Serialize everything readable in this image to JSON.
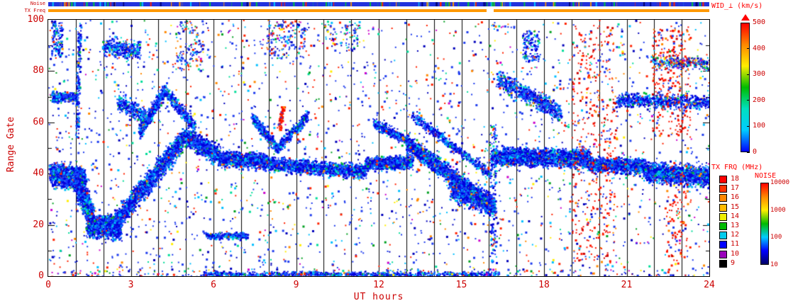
{
  "style": {
    "label_color": "#cc0000",
    "title_color": "#ff0000",
    "grid_color": "#000000",
    "frame_color": "#000000",
    "background_color": "#ffffff"
  },
  "figure": {
    "strip_labels": {
      "noise": "Noise",
      "tx_freq": "TX Freq"
    },
    "noise_strip": {
      "base_color": "#2233dd",
      "speck_count": 520
    },
    "tx_strip_segments": [
      {
        "from": 0.0,
        "to": 0.663,
        "color": "#ff9900"
      },
      {
        "from": 0.663,
        "to": 0.674,
        "color": "#ffffff"
      },
      {
        "from": 0.674,
        "to": 1.0,
        "color": "#ff9900"
      }
    ],
    "axes": {
      "xlabel": "UT hours",
      "ylabel": "Range Gate",
      "x_ticks": [
        "0",
        "3",
        "6",
        "9",
        "12",
        "15",
        "18",
        "21",
        "24"
      ],
      "y_ticks": [
        "0",
        "20",
        "40",
        "60",
        "80",
        "100"
      ]
    },
    "colorbars": {
      "wid": {
        "title": "WID_⊥ (km/s)",
        "tick_labels": [
          "0",
          "100",
          "200",
          "300",
          "400",
          "500"
        ],
        "max": 500,
        "gradient": [
          "#0000ff",
          "#00ccff",
          "#00e0c0",
          "#00bb00",
          "#ffee00",
          "#ff8800",
          "#ff0000"
        ]
      },
      "tx_frq": {
        "title": "TX FRQ (MHz)",
        "entries": [
          {
            "label": "18",
            "color": "#ff0000"
          },
          {
            "label": "17",
            "color": "#ff3300"
          },
          {
            "label": "16",
            "color": "#ff8800"
          },
          {
            "label": "15",
            "color": "#ffbb00"
          },
          {
            "label": "14",
            "color": "#eeee00"
          },
          {
            "label": "13",
            "color": "#00bb00"
          },
          {
            "label": "12",
            "color": "#00ccee"
          },
          {
            "label": "11",
            "color": "#0000ff"
          },
          {
            "label": "10",
            "color": "#9900bb"
          },
          {
            "label": "9",
            "color": "#000000"
          }
        ]
      },
      "noise": {
        "title": "NOISE",
        "tick_labels": [
          "10000",
          "1000",
          "100",
          "10"
        ],
        "log_min": 10,
        "log_max": 10000,
        "gradient": [
          "#000066",
          "#0000ff",
          "#00ccff",
          "#00bb00",
          "#ffee00",
          "#ff8800",
          "#ff0000"
        ]
      }
    }
  },
  "chart_data": {
    "type": "heatmap",
    "title": "",
    "xlabel": "UT hours",
    "ylabel": "Range Gate",
    "x_range": [
      0,
      24
    ],
    "y_range": [
      0,
      100
    ],
    "grid": {
      "vertical_line_every_hours": 1,
      "color": "#000000"
    },
    "colorbar": {
      "label": "WID_⊥ (km/s)",
      "range": [
        0,
        500
      ]
    },
    "units": {
      "x": "UT hours",
      "y": "range gate",
      "color": "perpendicular spectral width (km/s)"
    },
    "palettes": {
      "dense": [
        [
          "#0000dd",
          0.45
        ],
        [
          "#1e3cff",
          0.22
        ],
        [
          "#0077ff",
          0.12
        ],
        [
          "#00bfff",
          0.09
        ],
        [
          "#00e0d0",
          0.05
        ],
        [
          "#00b830",
          0.03
        ],
        [
          "#ff2a00",
          0.025
        ],
        [
          "#ff9900",
          0.015
        ]
      ],
      "bg": [
        [
          "#1e3cee",
          0.38
        ],
        [
          "#0000bb",
          0.14
        ],
        [
          "#00bfff",
          0.1
        ],
        [
          "#00dd99",
          0.06
        ],
        [
          "#00a020",
          0.06
        ],
        [
          "#ff2200",
          0.14
        ],
        [
          "#ff8800",
          0.05
        ],
        [
          "#ffee00",
          0.03
        ],
        [
          "#cc00cc",
          0.04
        ]
      ],
      "red": [
        [
          "#ff1500",
          0.58
        ],
        [
          "#cc0000",
          0.2
        ],
        [
          "#ff8800",
          0.12
        ],
        [
          "#1e3cee",
          0.1
        ]
      ],
      "strip": [
        [
          "#2233dd",
          0.72
        ],
        [
          "#00c040",
          0.08
        ],
        [
          "#ff2200",
          0.07
        ],
        [
          "#ff9900",
          0.05
        ],
        [
          "#00c8ff",
          0.04
        ],
        [
          "#000070",
          0.04
        ]
      ]
    },
    "background": {
      "count": 2600,
      "palette": "bg"
    },
    "features": [
      {
        "x0": 0.05,
        "y0": 40,
        "x1": 1.3,
        "y1": 38,
        "spread": 5,
        "count": 1300,
        "palette": "dense"
      },
      {
        "x0": 1.0,
        "y0": 38,
        "x1": 1.6,
        "y1": 22,
        "spread": 7,
        "count": 900,
        "palette": "dense"
      },
      {
        "x0": 1.4,
        "y0": 20,
        "x1": 2.6,
        "y1": 19,
        "spread": 5,
        "count": 1400,
        "palette": "dense"
      },
      {
        "x0": 2.4,
        "y0": 21,
        "x1": 4.9,
        "y1": 54,
        "spread": 5,
        "count": 1800,
        "palette": "dense"
      },
      {
        "x0": 3.3,
        "y0": 56,
        "x1": 4.2,
        "y1": 73,
        "spread": 3,
        "count": 450,
        "palette": "dense"
      },
      {
        "x0": 4.2,
        "y0": 73,
        "x1": 5.3,
        "y1": 58,
        "spread": 3,
        "count": 350,
        "palette": "dense"
      },
      {
        "x0": 4.9,
        "y0": 55,
        "x1": 6.2,
        "y1": 47,
        "spread": 4,
        "count": 900,
        "palette": "dense"
      },
      {
        "x0": 6.2,
        "y0": 46,
        "x1": 8.0,
        "y1": 45,
        "spread": 3.5,
        "count": 1100,
        "palette": "dense"
      },
      {
        "x0": 7.4,
        "y0": 62,
        "x1": 8.3,
        "y1": 50,
        "spread": 2.5,
        "count": 350,
        "palette": "dense"
      },
      {
        "x0": 8.3,
        "y0": 50,
        "x1": 9.4,
        "y1": 63,
        "spread": 2.5,
        "count": 320,
        "palette": "dense"
      },
      {
        "x0": 8.0,
        "y0": 44,
        "x1": 11.5,
        "y1": 41,
        "spread": 3,
        "count": 1500,
        "palette": "dense"
      },
      {
        "x0": 11.5,
        "y0": 44,
        "x1": 13.2,
        "y1": 45,
        "spread": 3,
        "count": 800,
        "palette": "dense"
      },
      {
        "x0": 11.8,
        "y0": 60,
        "x1": 13.0,
        "y1": 53,
        "spread": 2.5,
        "count": 300,
        "palette": "dense"
      },
      {
        "x0": 13.0,
        "y0": 52,
        "x1": 16.2,
        "y1": 27,
        "spread": 4,
        "count": 2000,
        "palette": "dense"
      },
      {
        "x0": 13.2,
        "y0": 63,
        "x1": 16.0,
        "y1": 40,
        "spread": 2.5,
        "count": 500,
        "palette": "dense"
      },
      {
        "x0": 14.6,
        "y0": 34,
        "x1": 16.1,
        "y1": 28,
        "spread": 5,
        "count": 900,
        "palette": "dense"
      },
      {
        "x0": 16.1,
        "y0": 47,
        "x1": 19.6,
        "y1": 46,
        "spread": 4,
        "count": 2300,
        "palette": "dense"
      },
      {
        "x0": 16.3,
        "y0": 77,
        "x1": 18.6,
        "y1": 64,
        "spread": 4,
        "count": 700,
        "palette": "dense"
      },
      {
        "x0": 19.6,
        "y0": 44,
        "x1": 21.6,
        "y1": 43,
        "spread": 3.5,
        "count": 1100,
        "palette": "dense"
      },
      {
        "x0": 21.6,
        "y0": 41,
        "x1": 24,
        "y1": 39,
        "spread": 4.5,
        "count": 1500,
        "palette": "dense"
      },
      {
        "x0": 20.6,
        "y0": 69,
        "x1": 24,
        "y1": 68,
        "spread": 3,
        "count": 650,
        "palette": "dense"
      },
      {
        "x0": 21.9,
        "y0": 84,
        "x1": 24,
        "y1": 83,
        "spread": 3,
        "count": 280,
        "palette": "bg"
      },
      {
        "x0": 0.1,
        "y0": 70,
        "x1": 1.0,
        "y1": 70,
        "spread": 2.5,
        "count": 260,
        "palette": "dense"
      },
      {
        "x0": 2.0,
        "y0": 90,
        "x1": 3.3,
        "y1": 88,
        "spread": 4,
        "count": 320,
        "palette": "dense"
      },
      {
        "x0": 2.5,
        "y0": 68,
        "x1": 3.5,
        "y1": 63,
        "spread": 4,
        "count": 300,
        "palette": "dense"
      },
      {
        "x0": 5.7,
        "y0": 16,
        "x1": 7.2,
        "y1": 16,
        "spread": 1.5,
        "count": 320,
        "palette": "dense"
      },
      {
        "x0": 5.6,
        "y0": 1,
        "x1": 16.3,
        "y1": 1,
        "spread": 1.2,
        "count": 800,
        "palette": "dense"
      },
      {
        "x0": 8.35,
        "y0": 57,
        "x1": 8.5,
        "y1": 66,
        "spread": 1.5,
        "count": 70,
        "palette": "red"
      },
      {
        "box": true,
        "x0": 19.0,
        "x1": 20.6,
        "y0": 5,
        "y1": 98,
        "count": 380,
        "palette": "red"
      },
      {
        "box": true,
        "x0": 21.9,
        "x1": 23.3,
        "y0": 55,
        "y1": 98,
        "count": 240,
        "palette": "red"
      },
      {
        "box": true,
        "x0": 0,
        "x1": 24,
        "y0": 0,
        "y1": 3,
        "count": 240,
        "palette": "bg"
      },
      {
        "x0": 1.02,
        "y0": 55,
        "x1": 1.12,
        "y1": 98,
        "spread": 1.5,
        "count": 160,
        "palette": "dense"
      },
      {
        "box": true,
        "x0": 16.02,
        "x1": 16.25,
        "y0": 5,
        "y1": 60,
        "count": 150,
        "palette": "dense"
      },
      {
        "box": true,
        "x0": 7.9,
        "x1": 9.3,
        "y0": 85,
        "y1": 100,
        "count": 140,
        "palette": "bg"
      },
      {
        "box": true,
        "x0": 10.0,
        "x1": 11.3,
        "y0": 88,
        "y1": 100,
        "count": 90,
        "palette": "bg"
      },
      {
        "box": true,
        "x0": 4.6,
        "x1": 5.6,
        "y0": 80,
        "y1": 100,
        "count": 120,
        "palette": "bg"
      },
      {
        "box": true,
        "x0": 0.1,
        "x1": 0.5,
        "y0": 86,
        "y1": 100,
        "count": 120,
        "palette": "dense"
      },
      {
        "box": true,
        "x0": 17.2,
        "x1": 17.8,
        "y0": 84,
        "y1": 96,
        "count": 130,
        "palette": "dense"
      },
      {
        "box": true,
        "x0": 22.4,
        "x1": 23.2,
        "y0": 5,
        "y1": 45,
        "count": 100,
        "palette": "red"
      }
    ]
  }
}
